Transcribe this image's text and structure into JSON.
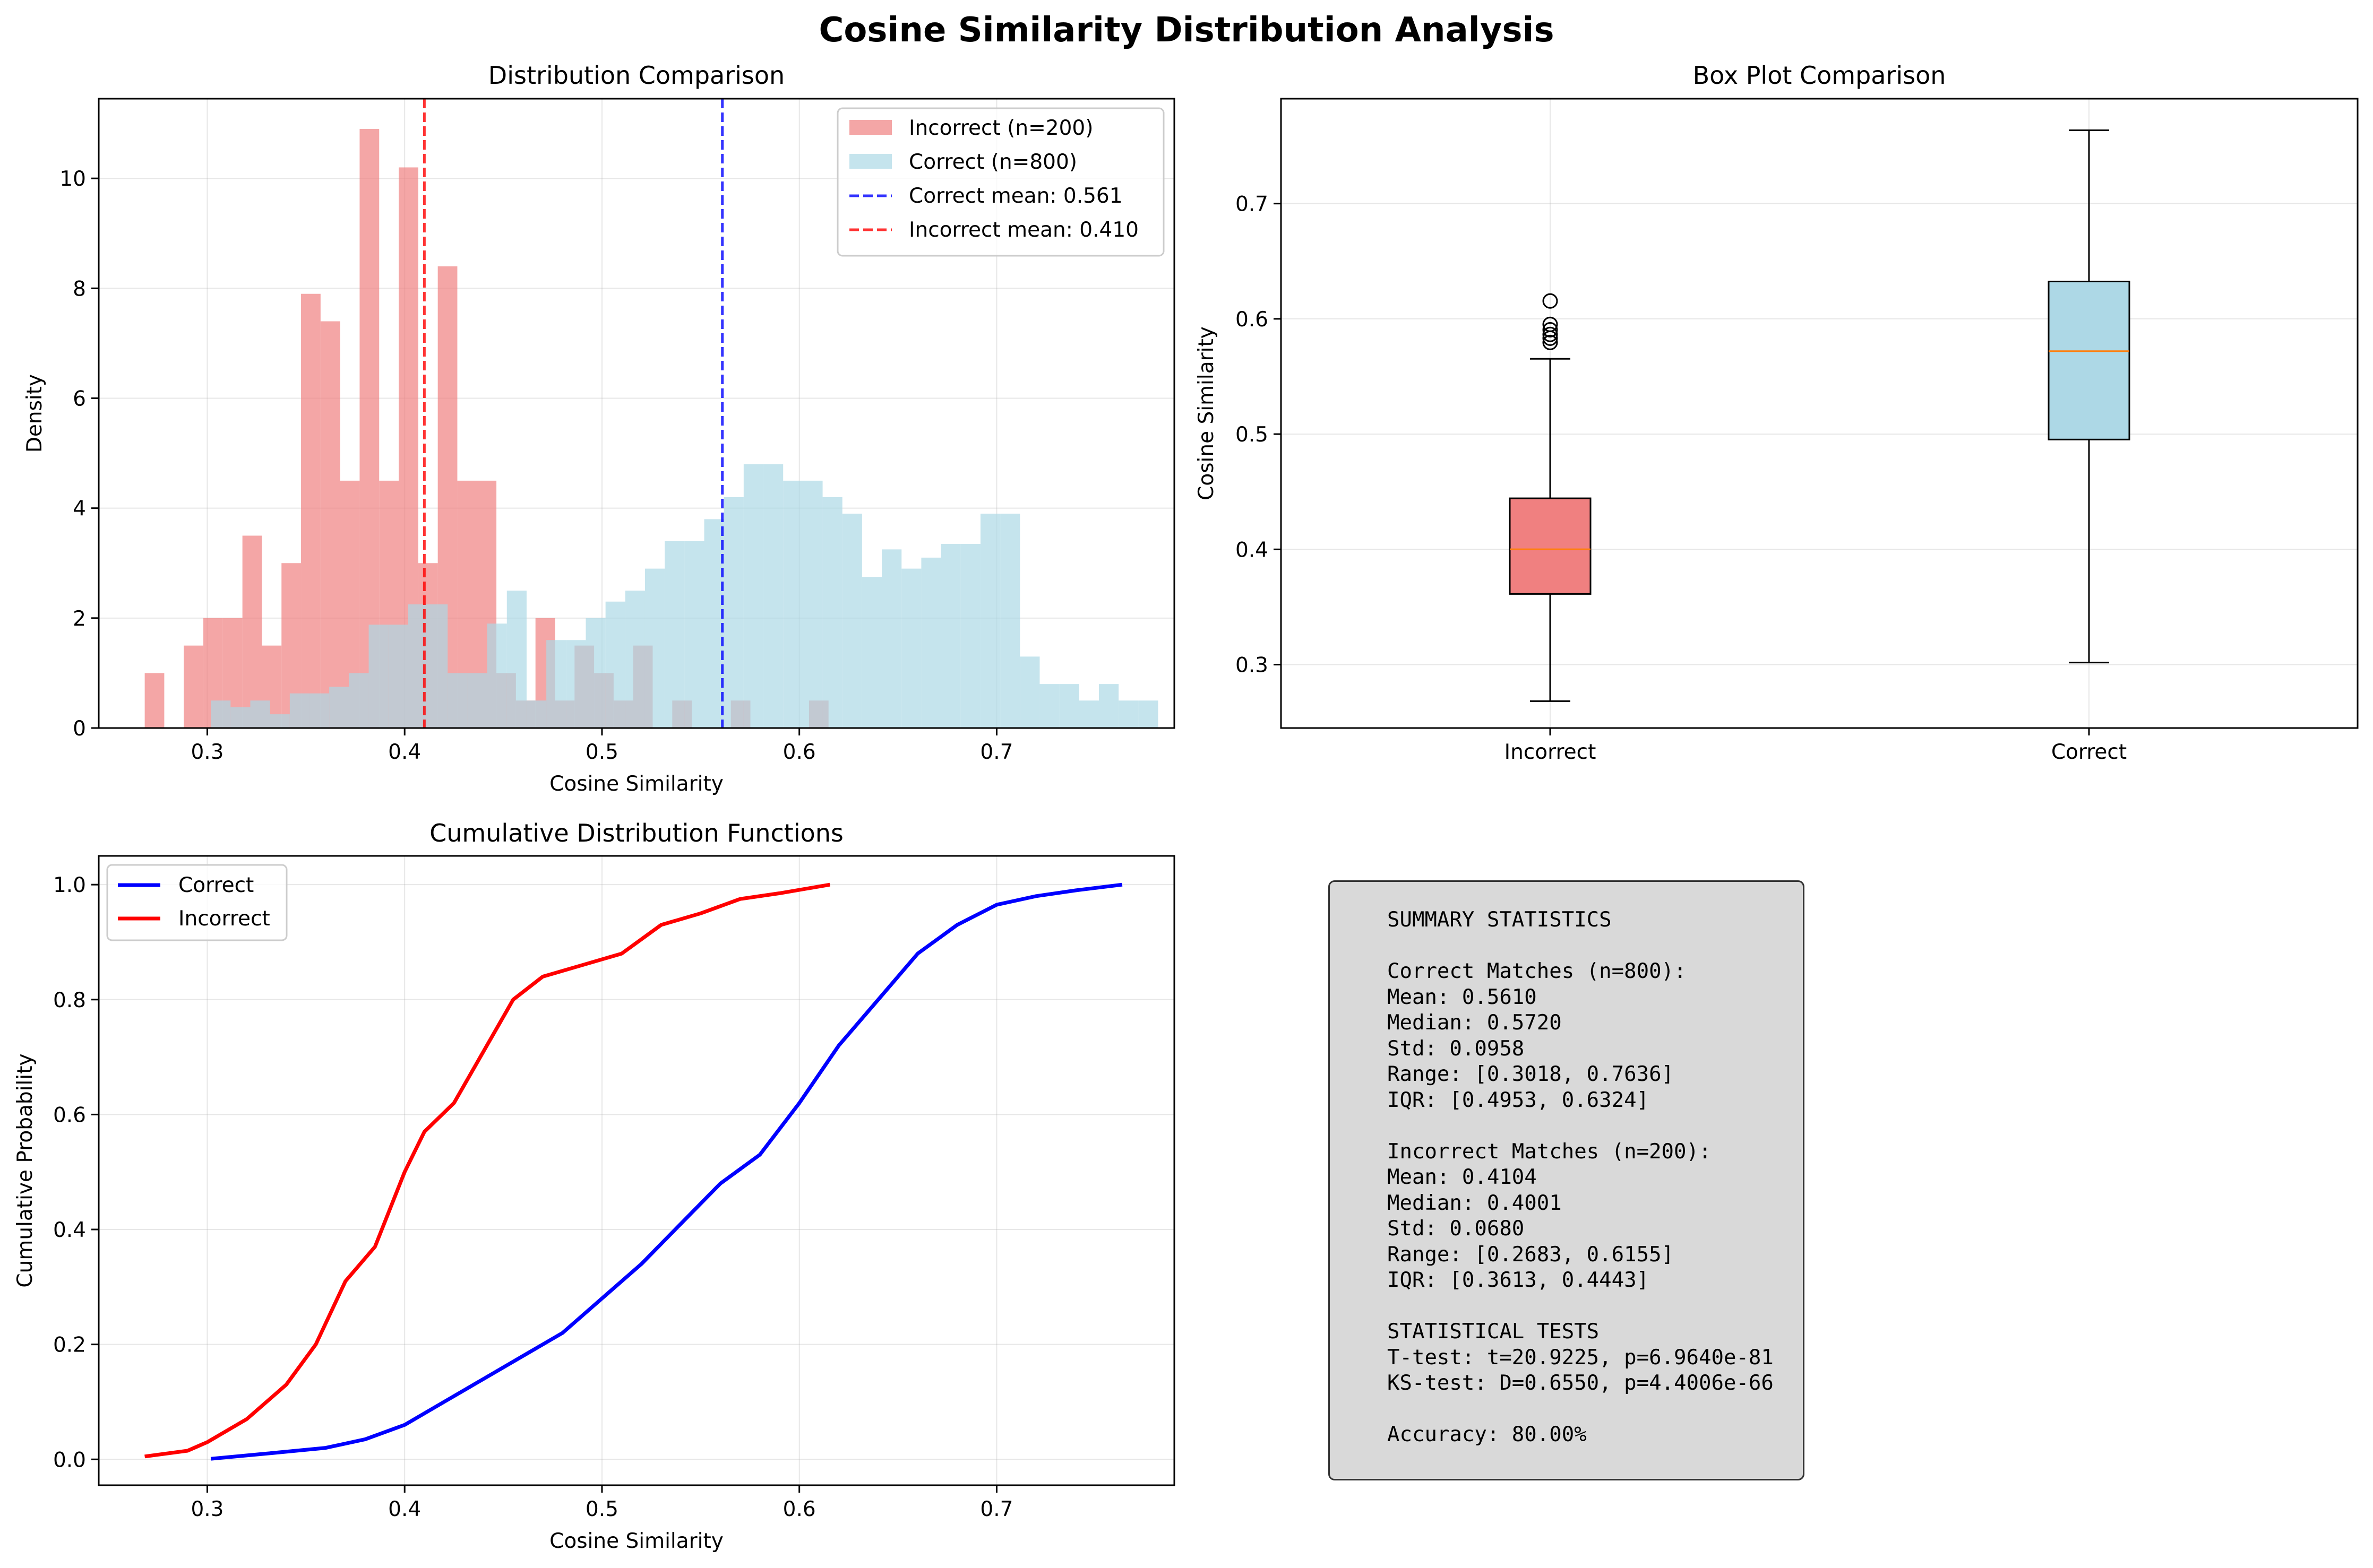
{
  "figure_title": "Cosine Similarity Distribution Analysis",
  "colors": {
    "incorrect_hist": "#f08080",
    "correct_hist": "#add8e6",
    "correct_line": "#0000ff",
    "incorrect_line": "#ff0000",
    "median_line": "#ff7f0e",
    "stats_box_bg": "#d9d9d9"
  },
  "chart_data": [
    {
      "type": "bar",
      "title": "Distribution Comparison",
      "xlabel": "Cosine Similarity",
      "ylabel": "Density",
      "xlim": [
        0.245,
        0.79
      ],
      "ylim": [
        0,
        11.45
      ],
      "xticks": [
        "0.3",
        "0.4",
        "0.5",
        "0.6",
        "0.7"
      ],
      "yticks": [
        "0",
        "2",
        "4",
        "6",
        "8",
        "10"
      ],
      "grid": true,
      "legend_position": "top-right",
      "series": [
        {
          "name": "Incorrect (n=200)",
          "bin_start": 0.2683,
          "bin_width": 0.0099,
          "values": [
            1.0,
            0,
            1.5,
            2.0,
            2.0,
            3.5,
            1.5,
            3.0,
            7.9,
            7.4,
            4.5,
            10.9,
            4.5,
            10.2,
            3.0,
            8.4,
            4.5,
            4.5,
            1.0,
            0.5,
            2.0,
            0.5,
            1.5,
            1.0,
            0.5,
            1.5,
            0,
            0.5,
            0,
            0,
            0.5,
            0,
            0,
            0,
            0.5
          ]
        },
        {
          "name": "Correct (n=800)",
          "bin_start": 0.3018,
          "bin_width": 0.01,
          "values": [
            0.5,
            0.38,
            0.5,
            0.25,
            0.63,
            0.63,
            0.75,
            1.0,
            1.88,
            1.88,
            2.25,
            2.25,
            1.0,
            1.0,
            1.9,
            2.5,
            0.5,
            1.6,
            1.6,
            2.0,
            2.3,
            2.5,
            2.9,
            3.4,
            3.4,
            3.8,
            4.2,
            4.8,
            4.8,
            4.5,
            4.5,
            4.2,
            3.9,
            2.75,
            3.25,
            2.9,
            3.1,
            3.35,
            3.35,
            3.9,
            3.9,
            1.3,
            0.8,
            0.8,
            0.5,
            0.8,
            0.5,
            0.5
          ]
        }
      ],
      "vlines": [
        {
          "name": "Correct mean: 0.561",
          "x": 0.561,
          "color": "#0000ff"
        },
        {
          "name": "Incorrect mean: 0.410",
          "x": 0.41,
          "color": "#ff0000"
        }
      ]
    },
    {
      "type": "box",
      "title": "Box Plot Comparison",
      "xlabel": "",
      "ylabel": "Cosine Similarity",
      "ylim": [
        0.245,
        0.791
      ],
      "yticks": [
        "0.3",
        "0.4",
        "0.5",
        "0.6",
        "0.7"
      ],
      "grid": true,
      "categories": [
        "Incorrect",
        "Correct"
      ],
      "boxes": [
        {
          "name": "Incorrect",
          "whisker_low": 0.2683,
          "q1": 0.3613,
          "median": 0.4001,
          "q3": 0.4443,
          "whisker_high": 0.5653,
          "outliers": [
            0.5795,
            0.5832,
            0.5865,
            0.5905,
            0.5952,
            0.6155
          ]
        },
        {
          "name": "Correct",
          "whisker_low": 0.3018,
          "q1": 0.4953,
          "median": 0.572,
          "q3": 0.6324,
          "whisker_high": 0.7636,
          "outliers": []
        }
      ]
    },
    {
      "type": "line",
      "title": "Cumulative Distribution Functions",
      "xlabel": "Cosine Similarity",
      "ylabel": "Cumulative Probability",
      "xlim": [
        0.245,
        0.79
      ],
      "ylim": [
        -0.045,
        1.05
      ],
      "xticks": [
        "0.3",
        "0.4",
        "0.5",
        "0.6",
        "0.7"
      ],
      "yticks": [
        "0.0",
        "0.2",
        "0.4",
        "0.6",
        "0.8",
        "1.0"
      ],
      "grid": true,
      "legend_position": "top-left",
      "series": [
        {
          "name": "Correct",
          "x": [
            0.3018,
            0.33,
            0.36,
            0.38,
            0.4,
            0.42,
            0.44,
            0.46,
            0.48,
            0.5,
            0.52,
            0.54,
            0.56,
            0.58,
            0.6,
            0.62,
            0.64,
            0.66,
            0.68,
            0.7,
            0.72,
            0.74,
            0.7636
          ],
          "values": [
            0.001,
            0.01,
            0.02,
            0.035,
            0.06,
            0.1,
            0.14,
            0.18,
            0.22,
            0.28,
            0.34,
            0.41,
            0.48,
            0.53,
            0.62,
            0.72,
            0.8,
            0.88,
            0.93,
            0.965,
            0.98,
            0.99,
            1.0
          ]
        },
        {
          "name": "Incorrect",
          "x": [
            0.2683,
            0.29,
            0.3,
            0.32,
            0.34,
            0.355,
            0.37,
            0.385,
            0.4,
            0.41,
            0.425,
            0.44,
            0.455,
            0.47,
            0.49,
            0.51,
            0.53,
            0.55,
            0.57,
            0.59,
            0.6155
          ],
          "values": [
            0.005,
            0.015,
            0.03,
            0.07,
            0.13,
            0.2,
            0.31,
            0.37,
            0.5,
            0.57,
            0.62,
            0.71,
            0.8,
            0.84,
            0.86,
            0.88,
            0.93,
            0.95,
            0.975,
            0.985,
            1.0
          ]
        }
      ]
    }
  ],
  "summary_statistics": {
    "header": "SUMMARY STATISTICS",
    "correct_header": "Correct Matches (n=800):",
    "correct_mean": "Mean: 0.5610",
    "correct_median": "Median: 0.5720",
    "correct_std": "Std: 0.0958",
    "correct_range": "Range: [0.3018, 0.7636]",
    "correct_iqr": "IQR: [0.4953, 0.6324]",
    "incorrect_header": "Incorrect Matches (n=200):",
    "incorrect_mean": "Mean: 0.4104",
    "incorrect_median": "Median: 0.4001",
    "incorrect_std": "Std: 0.0680",
    "incorrect_range": "Range: [0.2683, 0.6155]",
    "incorrect_iqr": "IQR: [0.3613, 0.4443]",
    "tests_header": "STATISTICAL TESTS",
    "t_test": "T-test: t=20.9225, p=6.9640e-81",
    "ks_test": "KS-test: D=0.6550, p=4.4006e-66",
    "accuracy": "Accuracy: 80.00%"
  }
}
